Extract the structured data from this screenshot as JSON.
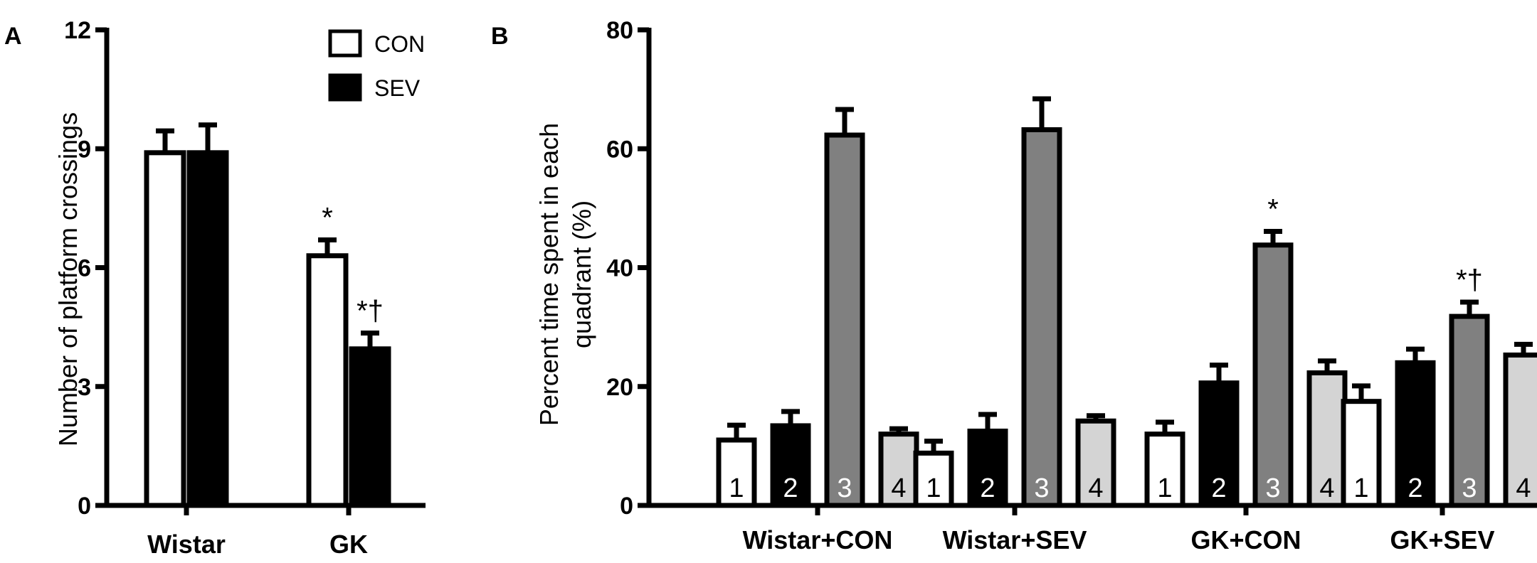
{
  "panels": {
    "a": {
      "label": "A",
      "chart_data": {
        "type": "bar",
        "title": "",
        "xlabel": "",
        "ylabel": "Number  of platform crossings",
        "categories": [
          "Wistar",
          "GK"
        ],
        "series": [
          {
            "name": "CON",
            "values": [
              8.9,
              6.3
            ],
            "errors": [
              0.55,
              0.4
            ],
            "color": "#ffffff"
          },
          {
            "name": "SEV",
            "values": [
              8.9,
              3.95
            ],
            "errors": [
              0.7,
              0.4
            ],
            "color": "#000000"
          }
        ],
        "annotations": [
          {
            "category": "GK",
            "series": "CON",
            "text": "*"
          },
          {
            "category": "GK",
            "series": "SEV",
            "text": "*†"
          }
        ],
        "yticks": [
          "0",
          "3",
          "6",
          "9",
          "12"
        ],
        "ylim": [
          0,
          12
        ],
        "legend": {
          "position": "top-right",
          "entries": [
            "CON",
            "SEV"
          ]
        },
        "grid": false
      }
    },
    "b": {
      "label": "B",
      "chart_data": {
        "type": "bar",
        "title": "",
        "xlabel": "",
        "ylabel_lines": [
          "Percent time spent in each",
          "quadrant  (%)"
        ],
        "categories": [
          "Wistar+CON",
          "Wistar+SEV",
          "GK+CON",
          "GK+SEV"
        ],
        "quadrant_labels": [
          "1",
          "2",
          "3",
          "4"
        ],
        "series": [
          {
            "quadrant": "1",
            "values": [
              11,
              8.8,
              12,
              17.5
            ],
            "errors": [
              2.5,
              2.0,
              2.0,
              2.6
            ],
            "color": "#ffffff"
          },
          {
            "quadrant": "2",
            "values": [
              13.4,
              12.5,
              20.6,
              24
            ],
            "errors": [
              2.4,
              2.8,
              3.0,
              2.3
            ],
            "color": "#000000"
          },
          {
            "quadrant": "3",
            "values": [
              62.3,
              63.2,
              43.8,
              31.8
            ],
            "errors": [
              4.3,
              5.2,
              2.3,
              2.4
            ],
            "color": "#808080"
          },
          {
            "quadrant": "4",
            "values": [
              12,
              14.2,
              22.3,
              25.3
            ],
            "errors": [
              0.9,
              0.9,
              2.0,
              1.8
            ],
            "color": "#d4d4d4"
          }
        ],
        "annotations": [
          {
            "category": "GK+CON",
            "quadrant": "3",
            "text": "*"
          },
          {
            "category": "GK+SEV",
            "quadrant": "3",
            "text": "*†"
          }
        ],
        "yticks": [
          "0",
          "20",
          "40",
          "60",
          "80"
        ],
        "ylim": [
          0,
          80
        ],
        "grid": false
      }
    }
  }
}
